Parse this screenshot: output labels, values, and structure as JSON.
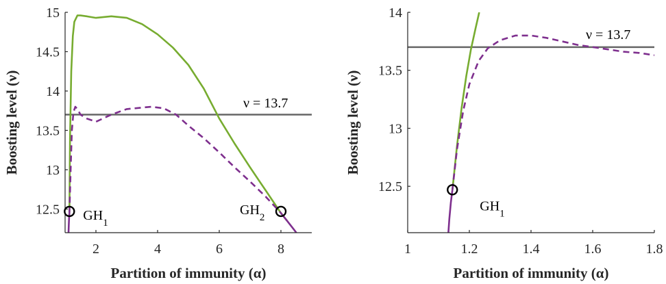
{
  "chart_data": [
    {
      "type": "line",
      "title": "",
      "xlabel": "Partition of immunity (α)",
      "ylabel": "Boosting level (ν)",
      "xlim": [
        1,
        9
      ],
      "ylim": [
        12.2,
        15
      ],
      "xticks": [
        2,
        4,
        6,
        8
      ],
      "yticks": [
        12.5,
        13,
        13.5,
        14,
        14.5,
        15
      ],
      "xtick_labels": [
        "2",
        "4",
        "6",
        "8"
      ],
      "ytick_labels": [
        "12.5",
        "13",
        "13.5",
        "14",
        "14.5",
        "15"
      ],
      "grid": false,
      "hline": {
        "y": 13.7,
        "label": "ν = 13.7",
        "color": "#666666"
      },
      "series": [
        {
          "color": "#77ac30",
          "style": "solid",
          "x": [
            1.14,
            1.16,
            1.2,
            1.25,
            1.3,
            1.4,
            1.5,
            1.7,
            2.0,
            2.5,
            3.0,
            3.5,
            4.0,
            4.5,
            5.0,
            5.5,
            6.0,
            6.5,
            7.0,
            7.5,
            8.0,
            8.2
          ],
          "y": [
            12.45,
            13.4,
            14.25,
            14.7,
            14.88,
            14.96,
            14.96,
            14.95,
            14.93,
            14.95,
            14.93,
            14.85,
            14.72,
            14.55,
            14.33,
            14.03,
            13.65,
            13.33,
            13.03,
            12.74,
            12.45,
            12.35
          ]
        },
        {
          "color": "#7e2f8e",
          "style": "dashed",
          "x": [
            1.14,
            1.18,
            1.22,
            1.27,
            1.33,
            1.4,
            1.5,
            1.7,
            2.0,
            2.5,
            3.0,
            3.5,
            3.8,
            4.2,
            4.6,
            5.0,
            5.5,
            6.0,
            6.5,
            7.0,
            7.5,
            8.0
          ],
          "y": [
            12.45,
            13.0,
            13.5,
            13.73,
            13.8,
            13.77,
            13.7,
            13.65,
            13.61,
            13.7,
            13.77,
            13.79,
            13.8,
            13.78,
            13.7,
            13.56,
            13.4,
            13.22,
            13.03,
            12.85,
            12.66,
            12.45
          ]
        },
        {
          "color": "#7e2f8e",
          "style": "solid",
          "x": [
            1.11,
            1.12,
            1.13,
            1.14
          ],
          "y": [
            12.2,
            12.3,
            12.38,
            12.45
          ]
        },
        {
          "color": "#7e2f8e",
          "style": "solid",
          "x": [
            8.0,
            8.2,
            8.4,
            8.5
          ],
          "y": [
            12.45,
            12.35,
            12.25,
            12.2
          ]
        }
      ],
      "markers": [
        {
          "x": 1.14,
          "y": 12.47,
          "label": "GH",
          "sub": "1"
        },
        {
          "x": 8.0,
          "y": 12.47,
          "label": "GH",
          "sub": "2"
        }
      ]
    },
    {
      "type": "line",
      "title": "",
      "xlabel": "Partition of immunity (α)",
      "ylabel": "Boosting level (ν)",
      "xlim": [
        1,
        1.8
      ],
      "ylim": [
        12.1,
        14
      ],
      "xticks": [
        1,
        1.2,
        1.4,
        1.6,
        1.8
      ],
      "yticks": [
        12.5,
        13,
        13.5,
        14
      ],
      "xtick_labels": [
        "1",
        "1.2",
        "1.4",
        "1.6",
        "1.8"
      ],
      "ytick_labels": [
        "12.5",
        "13",
        "13.5",
        "14"
      ],
      "grid": false,
      "hline": {
        "y": 13.7,
        "label": "ν = 13.7",
        "color": "#666666"
      },
      "series": [
        {
          "color": "#77ac30",
          "style": "solid",
          "x": [
            1.145,
            1.16,
            1.175,
            1.19,
            1.205,
            1.22,
            1.232
          ],
          "y": [
            12.47,
            12.85,
            13.18,
            13.45,
            13.68,
            13.86,
            14.0
          ]
        },
        {
          "color": "#7e2f8e",
          "style": "dashed",
          "x": [
            1.145,
            1.16,
            1.18,
            1.2,
            1.23,
            1.26,
            1.3,
            1.35,
            1.4,
            1.45,
            1.5,
            1.55,
            1.6,
            1.65,
            1.7,
            1.75,
            1.8
          ],
          "y": [
            12.47,
            12.82,
            13.15,
            13.38,
            13.58,
            13.69,
            13.76,
            13.8,
            13.8,
            13.78,
            13.75,
            13.72,
            13.7,
            13.68,
            13.66,
            13.65,
            13.63
          ]
        },
        {
          "color": "#7e2f8e",
          "style": "solid",
          "x": [
            1.132,
            1.135,
            1.14,
            1.145
          ],
          "y": [
            12.1,
            12.22,
            12.36,
            12.47
          ]
        }
      ],
      "markers": [
        {
          "x": 1.145,
          "y": 12.47,
          "label": "GH",
          "sub": "1"
        }
      ]
    }
  ]
}
